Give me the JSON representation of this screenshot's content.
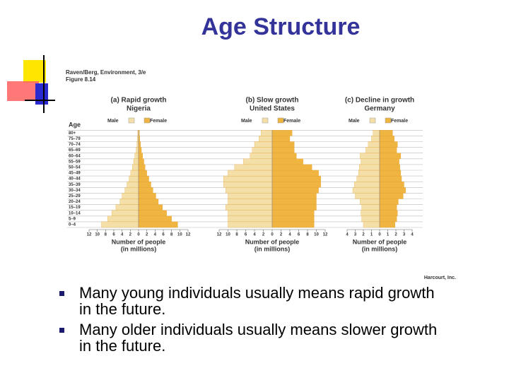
{
  "title": "Age Structure",
  "figure": {
    "source": "Raven/Berg, Environment, 3/e",
    "figure_label": "Figure 8.14",
    "age_label": "Age",
    "credit": "Harcourt, Inc.",
    "age_groups": [
      "0–4",
      "5–9",
      "10–14",
      "15–19",
      "20–24",
      "25–29",
      "30–34",
      "35–39",
      "40–44",
      "45–49",
      "50–54",
      "55–59",
      "60–64",
      "65–69",
      "70–74",
      "75–79",
      "80+"
    ]
  },
  "chart_data": [
    {
      "type": "pyramid",
      "title": "(a) Rapid growth",
      "subtitle": "Nigeria",
      "xlabel": "Number of people",
      "xlabel_sub": "(in millions)",
      "xlim": [
        -12,
        12
      ],
      "xticks": [
        {
          "value": -12,
          "label": "12"
        },
        {
          "value": -10,
          "label": "10"
        },
        {
          "value": -8,
          "label": "8"
        },
        {
          "value": -6,
          "label": "6"
        },
        {
          "value": -4,
          "label": "4"
        },
        {
          "value": -2,
          "label": "2"
        },
        0,
        2,
        4,
        6,
        8,
        10,
        12
      ],
      "series": [
        {
          "name": "Male",
          "color": "#f5dfa8",
          "values": [
            9,
            7.5,
            6.5,
            5.5,
            4.5,
            4,
            3.3,
            2.8,
            2.3,
            1.9,
            1.5,
            1.2,
            0.9,
            0.6,
            0.4,
            0.3,
            0.2
          ]
        },
        {
          "name": "Female",
          "color": "#f0b440",
          "values": [
            9.5,
            8,
            6.8,
            5.8,
            4.8,
            4.2,
            3.5,
            3,
            2.5,
            2,
            1.6,
            1.3,
            1,
            0.7,
            0.5,
            0.3,
            0.2
          ]
        }
      ]
    },
    {
      "type": "pyramid",
      "title": "(b) Slow growth",
      "subtitle": "United States",
      "xlabel": "Number of people",
      "xlabel_sub": "(in millions)",
      "xlim": [
        -12,
        12
      ],
      "xticks": [
        {
          "value": -12,
          "label": "12"
        },
        {
          "value": -10,
          "label": "10"
        },
        {
          "value": -8,
          "label": "8"
        },
        {
          "value": -6,
          "label": "6"
        },
        {
          "value": -4,
          "label": "4"
        },
        {
          "value": -2,
          "label": "2"
        },
        0,
        2,
        4,
        6,
        8,
        10,
        12
      ],
      "series": [
        {
          "name": "Male",
          "color": "#f5dfa8",
          "values": [
            10,
            10,
            10,
            10.5,
            10,
            10,
            10.5,
            11,
            11,
            10,
            8.5,
            6.5,
            5,
            4.5,
            4,
            3,
            2.5
          ]
        },
        {
          "name": "Female",
          "color": "#f0b440",
          "values": [
            9.5,
            9.5,
            9.5,
            10,
            10,
            10,
            10.5,
            11,
            11,
            10.5,
            9,
            7,
            5.5,
            5,
            5,
            4,
            4.5
          ]
        }
      ]
    },
    {
      "type": "pyramid",
      "title": "(c) Decline in growth",
      "subtitle": "Germany",
      "xlabel": "Number of people",
      "xlabel_sub": "(in millions)",
      "xlim": [
        -4,
        4
      ],
      "xticks": [
        {
          "value": -4,
          "label": "4"
        },
        {
          "value": -3,
          "label": "3"
        },
        {
          "value": -2,
          "label": "2"
        },
        {
          "value": -1,
          "label": "1"
        },
        0,
        1,
        2,
        3,
        4
      ],
      "series": [
        {
          "name": "Male",
          "color": "#f5dfa8",
          "values": [
            2,
            2.2,
            2.3,
            2.2,
            2.4,
            3,
            3.3,
            3.1,
            2.8,
            2.6,
            2.5,
            2.3,
            2.4,
            1.7,
            1.4,
            1,
            0.8
          ]
        },
        {
          "name": "Female",
          "color": "#f0b440",
          "values": [
            1.9,
            2.1,
            2.2,
            2.1,
            2.3,
            2.9,
            3.2,
            3,
            2.7,
            2.6,
            2.5,
            2.4,
            2.6,
            2.1,
            2.2,
            1.8,
            1.6
          ]
        }
      ]
    }
  ],
  "bullets": [
    [
      "Many young individuals usually means rapid growth",
      "in the future."
    ],
    [
      "Many older individuals usually means slower growth",
      "in the future."
    ]
  ]
}
